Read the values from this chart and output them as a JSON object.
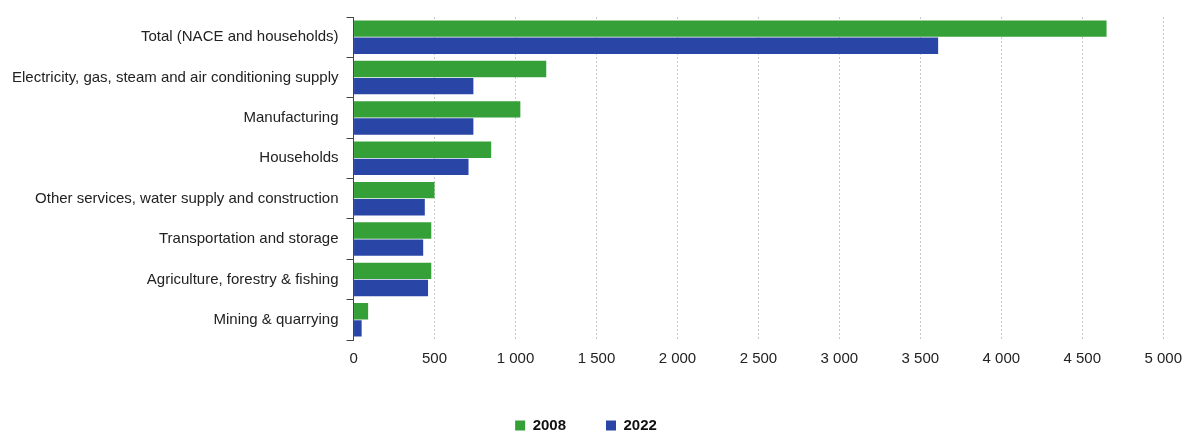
{
  "chart_data": {
    "type": "bar",
    "orientation": "horizontal",
    "categories": [
      "Total (NACE and households)",
      "Electricity, gas, steam and air conditioning supply",
      "Manufacturing",
      "Households",
      "Other services, water supply and construction",
      "Transportation and storage",
      "Agriculture, forestry & fishing",
      "Mining & quarrying"
    ],
    "series": [
      {
        "name": "2008",
        "color": "#34a037",
        "values": [
          4650,
          1190,
          1030,
          850,
          500,
          480,
          480,
          90
        ]
      },
      {
        "name": "2022",
        "color": "#2946a6",
        "values": [
          3610,
          740,
          740,
          710,
          440,
          430,
          460,
          50
        ]
      }
    ],
    "xlim": [
      0,
      5000
    ],
    "xticks": [
      0,
      500,
      {
        "value": 1000,
        "label": "1 000"
      },
      {
        "value": 1500,
        "label": "1 500"
      },
      {
        "value": 2000,
        "label": "2 000"
      },
      {
        "value": 2500,
        "label": "2 500"
      },
      {
        "value": 3000,
        "label": "3 000"
      },
      {
        "value": 3500,
        "label": "3 500"
      },
      {
        "value": 4000,
        "label": "4 000"
      },
      {
        "value": 4500,
        "label": "4 500"
      },
      {
        "value": 5000,
        "label": "5 000"
      }
    ],
    "grid": "x",
    "legend": "bottom"
  }
}
